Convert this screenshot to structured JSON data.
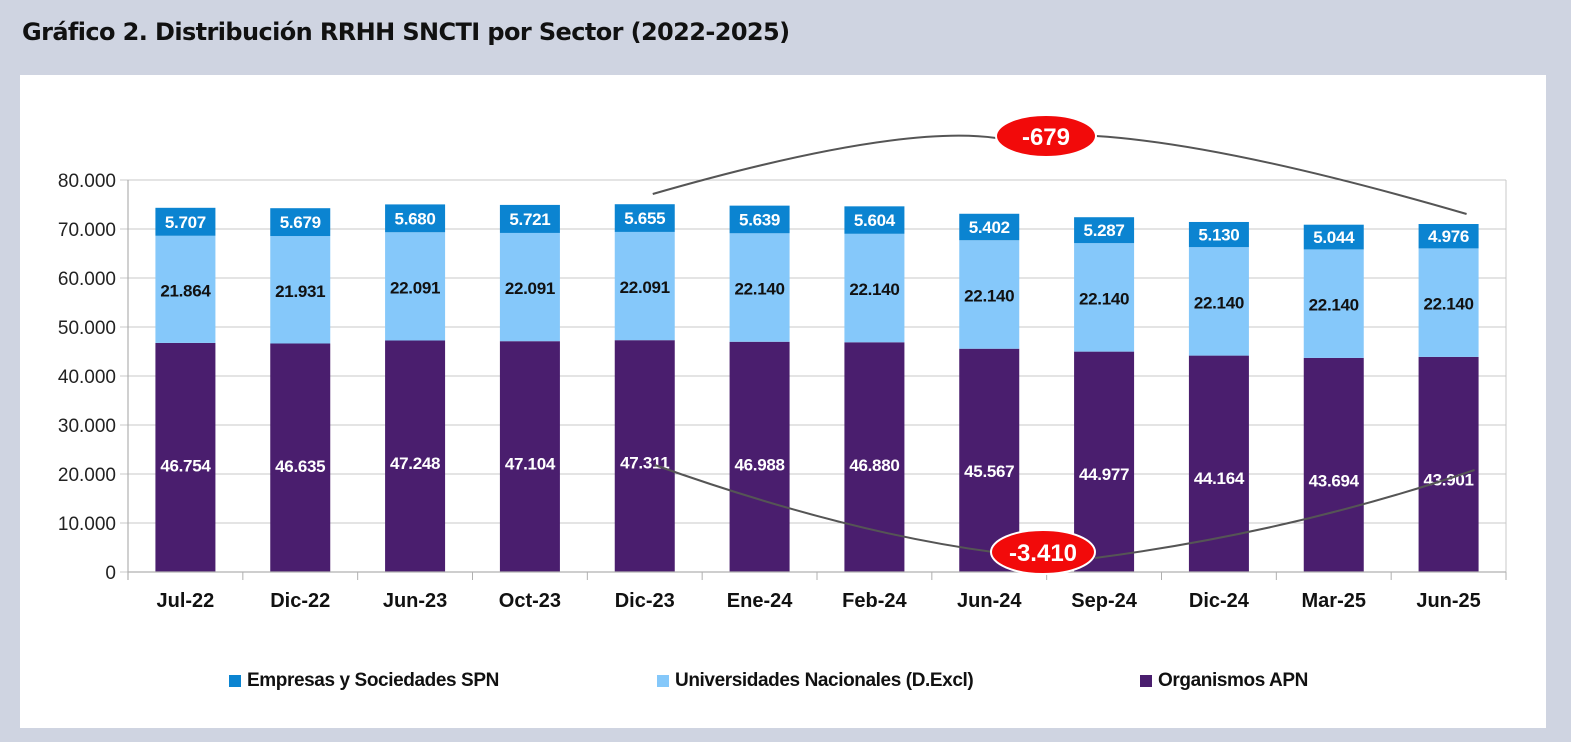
{
  "page": {
    "title": "Gráfico 2. Distribución RRHH SNCTI por Sector (2022-2025)"
  },
  "colors": {
    "background": "#cfd4e1",
    "panel": "#ffffff",
    "grid": "#c8c8c8",
    "empresas": "#0b84d1",
    "universidades": "#85c8fa",
    "organismos": "#4a1e6e",
    "callout_fill": "#f20a0a",
    "connector": "#555555"
  },
  "chart_data": {
    "type": "bar",
    "stacked": true,
    "title": "Gráfico 2. Distribución RRHH SNCTI por Sector (2022-2025)",
    "xlabel": "",
    "ylabel": "",
    "ylim": [
      0,
      80000
    ],
    "yticks": [
      0,
      10000,
      20000,
      30000,
      40000,
      50000,
      60000,
      70000,
      80000
    ],
    "ytick_labels": [
      "0",
      "10.000",
      "20.000",
      "30.000",
      "40.000",
      "50.000",
      "60.000",
      "70.000",
      "80.000"
    ],
    "grid": true,
    "legend_position": "bottom",
    "categories": [
      "Jul-22",
      "Dic-22",
      "Jun-23",
      "Oct-23",
      "Dic-23",
      "Ene-24",
      "Feb-24",
      "Jun-24",
      "Sep-24",
      "Dic-24",
      "Mar-25",
      "Jun-25"
    ],
    "series": [
      {
        "name": "Organismos APN",
        "color": "#4a1e6e",
        "label_color": "#ffffff",
        "values": [
          46754,
          46635,
          47248,
          47104,
          47311,
          46988,
          46880,
          45567,
          44977,
          44164,
          43694,
          43901
        ],
        "labels": [
          "46.754",
          "46.635",
          "47.248",
          "47.104",
          "47.311",
          "46.988",
          "46.880",
          "45.567",
          "44.977",
          "44.164",
          "43.694",
          "43.901"
        ]
      },
      {
        "name": "Universidades Nacionales (D.Excl)",
        "color": "#85c8fa",
        "label_color": "#111111",
        "values": [
          21864,
          21931,
          22091,
          22091,
          22091,
          22140,
          22140,
          22140,
          22140,
          22140,
          22140,
          22140
        ],
        "labels": [
          "21.864",
          "21.931",
          "22.091",
          "22.091",
          "22.091",
          "22.140",
          "22.140",
          "22.140",
          "22.140",
          "22.140",
          "22.140",
          "22.140"
        ]
      },
      {
        "name": "Empresas y Sociedades SPN",
        "color": "#0b84d1",
        "label_color": "#ffffff",
        "values": [
          5707,
          5679,
          5680,
          5721,
          5655,
          5639,
          5604,
          5402,
          5287,
          5130,
          5044,
          4976
        ],
        "labels": [
          "5.707",
          "5.679",
          "5.680",
          "5.721",
          "5.655",
          "5.639",
          "5.604",
          "5.402",
          "5.287",
          "5.130",
          "5.044",
          "4.976"
        ]
      }
    ],
    "legend": [
      {
        "name": "Empresas y Sociedades SPN",
        "color": "#0b84d1"
      },
      {
        "name": "Universidades Nacionales (D.Excl)",
        "color": "#85c8fa"
      },
      {
        "name": "Organismos APN",
        "color": "#4a1e6e"
      }
    ],
    "annotations": [
      {
        "text": "-679",
        "from_category": "Dic-23",
        "to_category": "Jun-25",
        "series": "Empresas y Sociedades SPN",
        "value": -679
      },
      {
        "text": "-3.410",
        "from_category": "Dic-23",
        "to_category": "Jun-25",
        "series": "Organismos APN",
        "value": -3410
      }
    ]
  }
}
